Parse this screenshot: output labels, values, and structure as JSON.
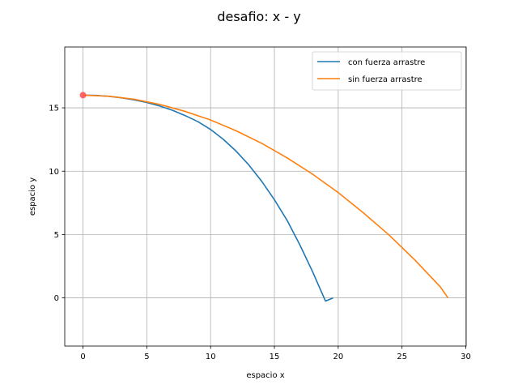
{
  "chart_data": {
    "type": "line",
    "title": "desafio: x - y",
    "xlabel": "espacio x",
    "ylabel": "espacio y",
    "xlim": [
      -1.43,
      30.03
    ],
    "ylim": [
      -3.8,
      19.8
    ],
    "xticks": [
      0,
      5,
      10,
      15,
      20,
      25,
      30
    ],
    "yticks": [
      0,
      5,
      10,
      15
    ],
    "grid": true,
    "legend_position": "top-right",
    "series": [
      {
        "name": "con fuerza arrastre",
        "color": "#1f77b4",
        "x": [
          0,
          1,
          2,
          3,
          4,
          5,
          6,
          7,
          8,
          9,
          10,
          11,
          12,
          13,
          14,
          15,
          16,
          17,
          18,
          19,
          19.6
        ],
        "y": [
          16,
          15.98,
          15.91,
          15.79,
          15.63,
          15.42,
          15.15,
          14.81,
          14.39,
          13.91,
          13.29,
          12.51,
          11.58,
          10.49,
          9.21,
          7.75,
          6.11,
          4.17,
          2.05,
          -0.25,
          0
        ]
      },
      {
        "name": "sin fuerza arrastre",
        "color": "#ff7f0e",
        "x": [
          0,
          2,
          4,
          6,
          8,
          10,
          12,
          14,
          16,
          18,
          20,
          22,
          24,
          26,
          28,
          28.6
        ],
        "y": [
          16,
          15.92,
          15.68,
          15.27,
          14.72,
          14.04,
          13.19,
          12.2,
          11.05,
          9.76,
          8.31,
          6.69,
          4.95,
          3.0,
          0.87,
          0
        ]
      }
    ],
    "markers": [
      {
        "x": 0,
        "y": 16,
        "color": "#ff4d4d"
      }
    ]
  }
}
